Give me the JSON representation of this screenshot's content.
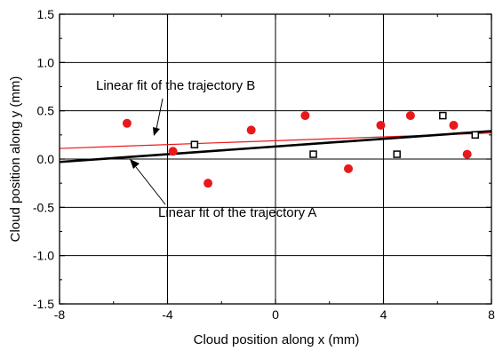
{
  "chart_data": {
    "type": "scatter",
    "title": "",
    "xlabel": "Cloud position along x (mm)",
    "ylabel": "Cloud position along y (mm)",
    "xlim": [
      -8,
      8
    ],
    "ylim": [
      -1.5,
      1.5
    ],
    "xticks": [
      -8,
      -4,
      0,
      4,
      8
    ],
    "yticks": [
      -1.5,
      -1.0,
      -0.5,
      0.0,
      0.5,
      1.0,
      1.5
    ],
    "xtick_labels": [
      "-8",
      "-4",
      "0",
      "4",
      "8"
    ],
    "ytick_labels": [
      "-1.5",
      "-1.0",
      "-0.5",
      "0.0",
      "0.5",
      "1.0",
      "1.5"
    ],
    "grid": true,
    "series": [
      {
        "marker": "filled-circle",
        "color": "#e8191c",
        "x": [
          -5.5,
          -3.8,
          -2.5,
          -0.9,
          1.1,
          2.7,
          3.9,
          5.0,
          6.6,
          7.1
        ],
        "y": [
          0.37,
          0.08,
          -0.25,
          0.3,
          0.45,
          -0.1,
          0.35,
          0.45,
          0.35,
          0.05
        ]
      },
      {
        "marker": "open-square",
        "color": "#000000",
        "x": [
          -3.0,
          1.4,
          4.5,
          6.2,
          7.4
        ],
        "y": [
          0.15,
          0.05,
          0.05,
          0.45,
          0.25
        ]
      }
    ],
    "fit_lines": [
      {
        "color": "#e8191c",
        "x": [
          -8,
          8
        ],
        "y": [
          0.11,
          0.27
        ]
      },
      {
        "color": "#000000",
        "x": [
          -8,
          8
        ],
        "y": [
          -0.03,
          0.29
        ]
      }
    ],
    "annotations": [
      {
        "text": "Linear fit of the trajectory B"
      },
      {
        "text": "Linear fit of the trajectory A"
      }
    ]
  }
}
